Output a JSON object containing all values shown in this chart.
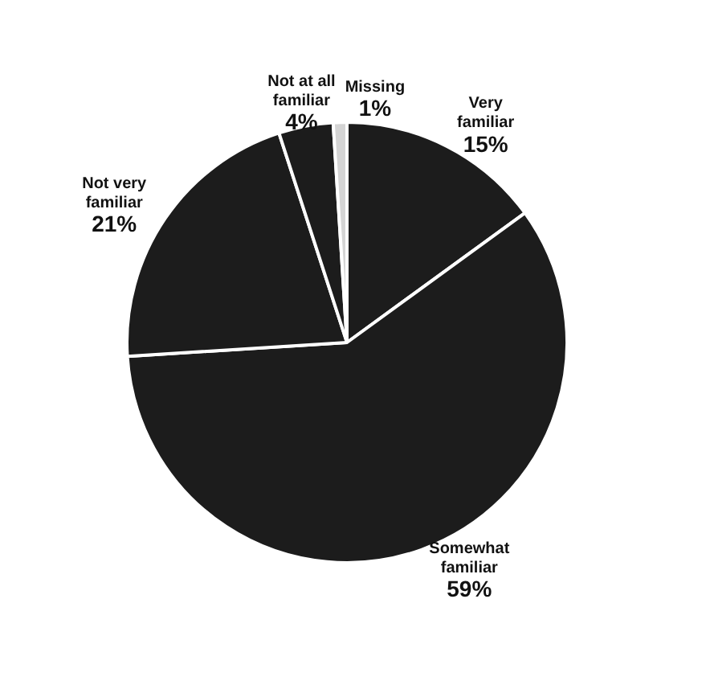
{
  "chart_data": {
    "type": "pie",
    "categories": [
      "Very familiar",
      "Somewhat familiar",
      "Not very familiar",
      "Not at all familiar",
      "Missing"
    ],
    "values": [
      15,
      59,
      21,
      4,
      1
    ],
    "colors": [
      "#1c1c1c",
      "#1c1c1c",
      "#1c1c1c",
      "#1c1c1c",
      "#d4d4d4"
    ],
    "value_labels": [
      "15%",
      "59%",
      "21%",
      "4%",
      "1%"
    ],
    "legend": false
  }
}
